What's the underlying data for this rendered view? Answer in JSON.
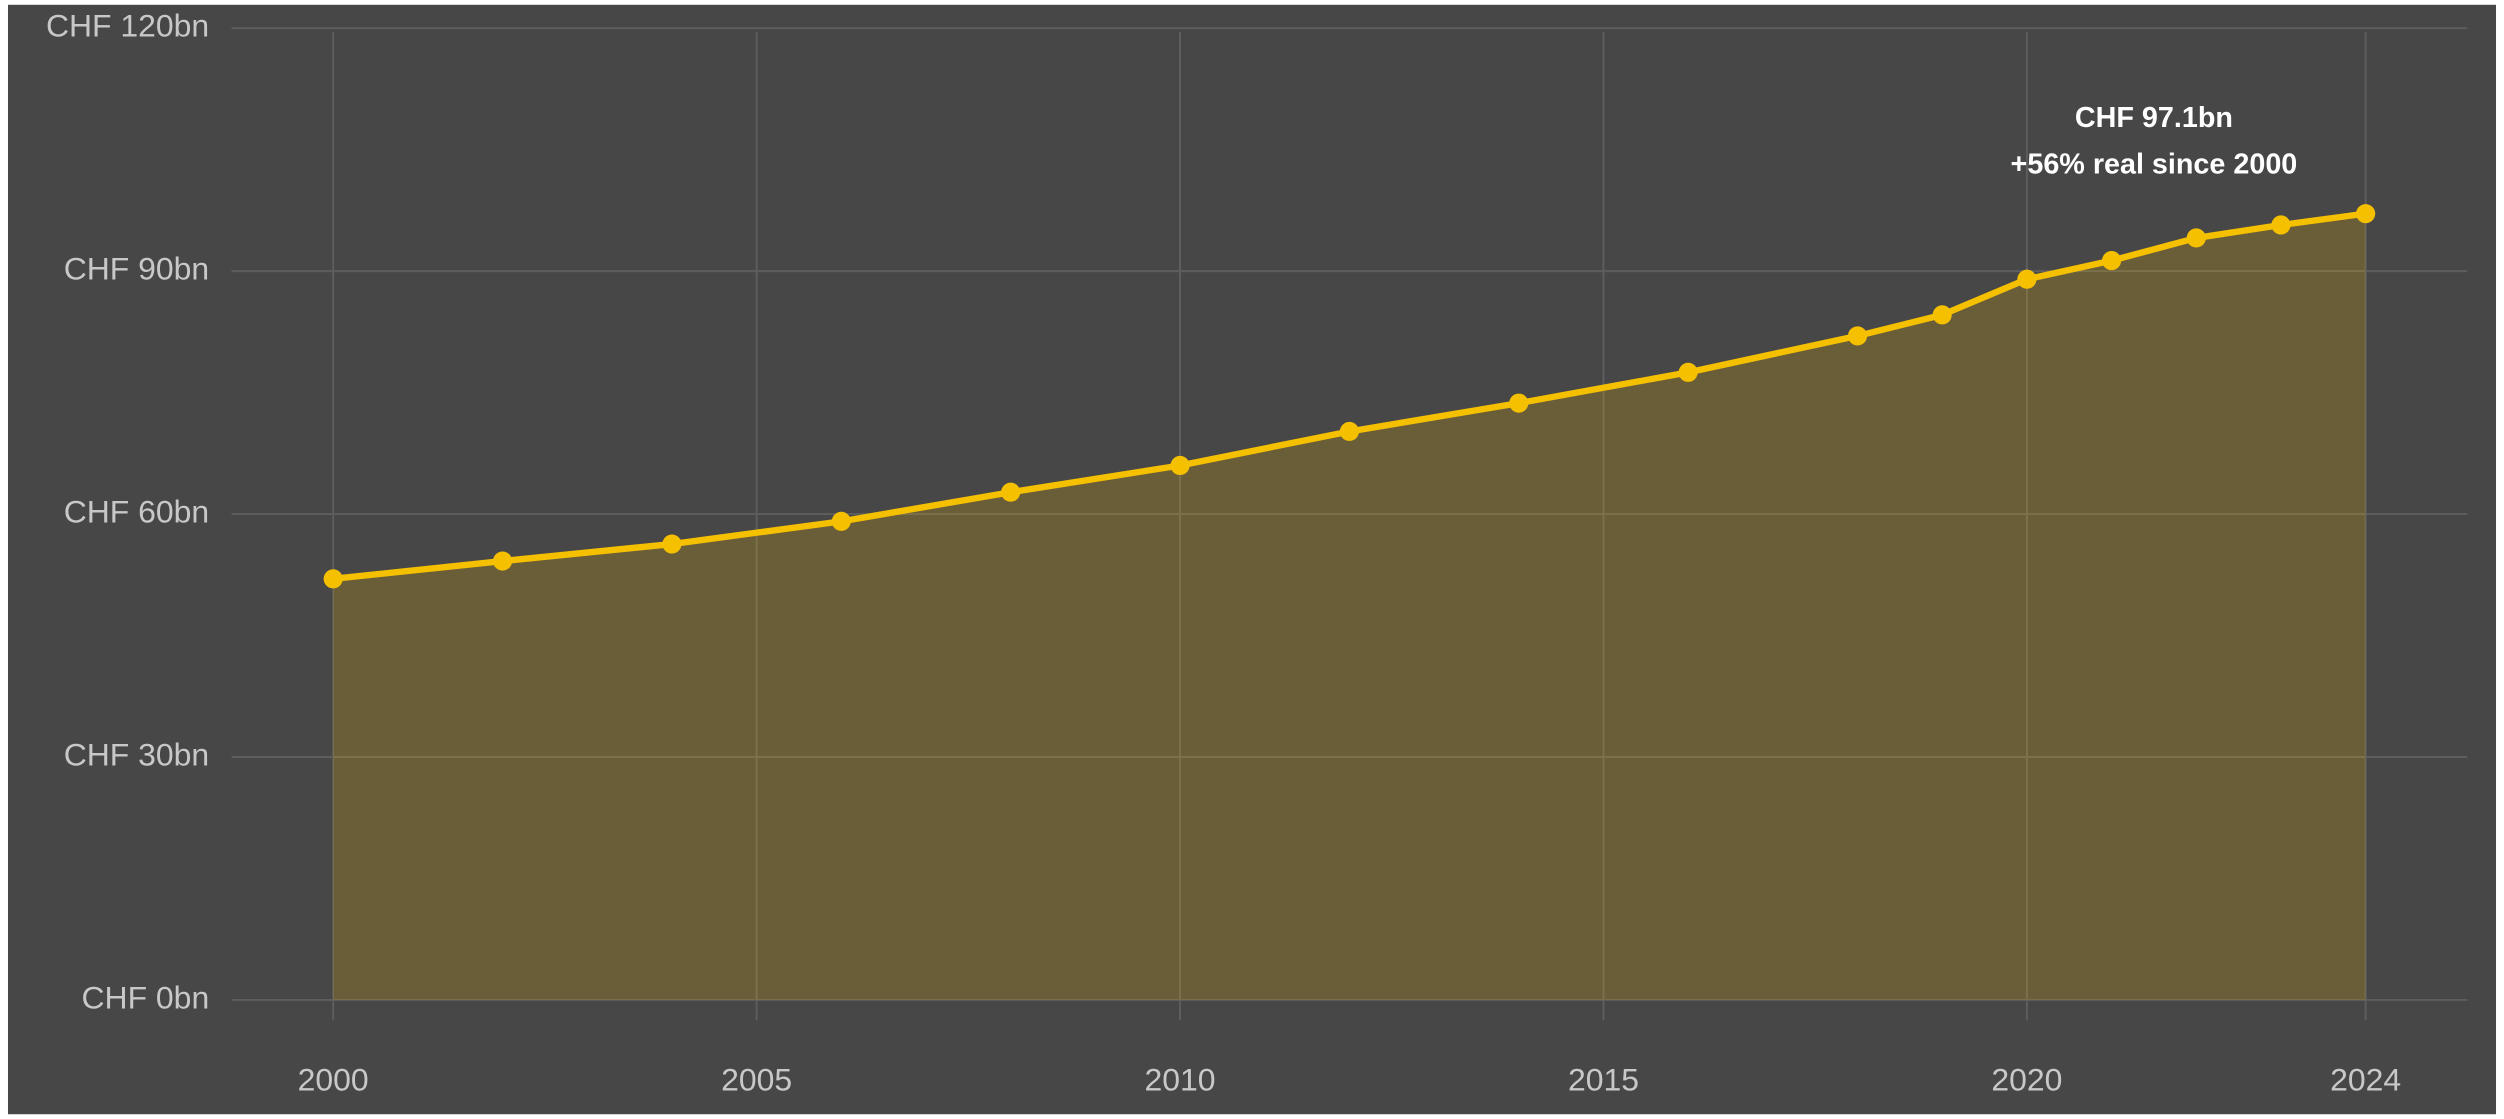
{
  "chart_data": {
    "type": "line",
    "x": [
      2000,
      2002,
      2004,
      2006,
      2008,
      2010,
      2012,
      2014,
      2016,
      2018,
      2019,
      2020,
      2021,
      2022,
      2023,
      2024
    ],
    "series": [
      {
        "name": null,
        "color": "#f5c000",
        "values": [
          52.0,
          54.2,
          56.3,
          59.1,
          62.7,
          66.0,
          70.2,
          73.7,
          77.5,
          82.0,
          84.6,
          89.0,
          91.3,
          94.1,
          95.7,
          97.1
        ]
      }
    ],
    "area": true,
    "markers": true,
    "grid": true,
    "background": "#474747",
    "xlim": [
      1998.8,
      2025.2
    ],
    "xticks": [
      2000,
      2005,
      2010,
      2015,
      2020,
      2024
    ],
    "ylim": [
      -2.5,
      122.5
    ],
    "yticks": [
      {
        "value": 0,
        "label": "CHF 0bn"
      },
      {
        "value": 30,
        "label": "CHF 30bn"
      },
      {
        "value": 60,
        "label": "CHF 60bn"
      },
      {
        "value": 90,
        "label": "CHF 90bn"
      },
      {
        "value": 120,
        "label": "CHF 120bn"
      }
    ],
    "annotation": {
      "lines": [
        "CHF 97.1bn",
        "+56% real since 2000"
      ],
      "x": 2021.5,
      "y": 103
    }
  }
}
